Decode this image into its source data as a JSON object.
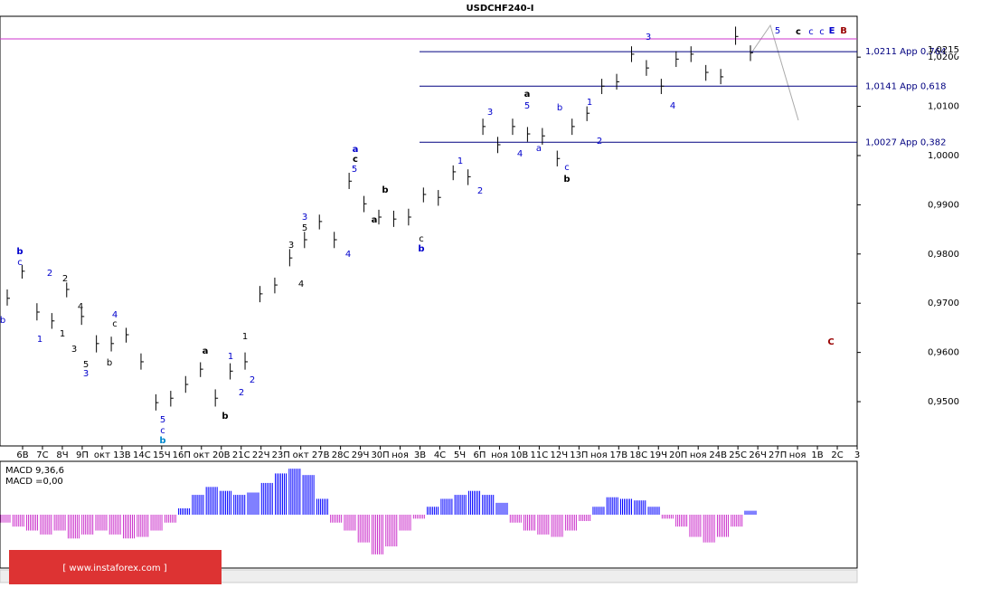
{
  "title": "USDCHF240-I",
  "watermark": "[ www.instaforex.com ]",
  "chart_data": [
    {
      "type": "ohlc",
      "name": "USDCHF240-I",
      "x_tick_labels": [
        "6В",
        "7С",
        "8Ч",
        "9П",
        "окт",
        "13В",
        "14С",
        "15Ч",
        "16П",
        "окт",
        "20В",
        "21С",
        "22Ч",
        "23П",
        "окт",
        "27В",
        "28С",
        "29Ч",
        "30П",
        "ноя",
        "3В",
        "4С",
        "5Ч",
        "6П",
        "ноя",
        "10В",
        "11С",
        "12Ч",
        "13П",
        "ноя",
        "17В",
        "18С",
        "19Ч",
        "20П",
        "ноя",
        "24В",
        "25С",
        "26Ч",
        "27П",
        "ноя",
        "1В",
        "2С",
        "3"
      ],
      "high": [
        0.9728,
        0.9778,
        0.97,
        0.968,
        0.9742,
        0.969,
        0.9635,
        0.9632,
        0.965,
        0.9598,
        0.9515,
        0.9522,
        0.9552,
        0.958,
        0.9525,
        0.9578,
        0.96,
        0.9735,
        0.9752,
        0.981,
        0.9845,
        0.988,
        0.9845,
        0.9965,
        0.9918,
        0.989,
        0.9888,
        0.9892,
        0.9935,
        0.993,
        0.998,
        0.9972,
        1.0075,
        1.0038,
        1.0075,
        1.0058,
        1.0056,
        1.001,
        1.0075,
        1.01,
        1.0156,
        1.0166,
        1.0222,
        1.0194,
        1.0156,
        1.0212,
        1.0222,
        1.0184,
        1.0176,
        1.0262,
        1.0224
      ],
      "low": [
        0.9695,
        0.975,
        0.9665,
        0.9648,
        0.9712,
        0.9656,
        0.96,
        0.9602,
        0.962,
        0.9565,
        0.9482,
        0.949,
        0.9518,
        0.955,
        0.949,
        0.9545,
        0.9565,
        0.9702,
        0.972,
        0.9775,
        0.9812,
        0.985,
        0.9812,
        0.9932,
        0.9885,
        0.986,
        0.9855,
        0.9858,
        0.9905,
        0.9898,
        0.995,
        0.994,
        1.0042,
        1.0005,
        1.0042,
        1.0028,
        1.0022,
        0.9978,
        1.0042,
        1.007,
        1.0125,
        1.0134,
        1.019,
        1.0162,
        1.0125,
        1.018,
        1.019,
        1.0152,
        1.0145,
        1.0225,
        1.0192
      ],
      "close": [
        0.971,
        0.9765,
        0.9682,
        0.9664,
        0.9728,
        0.9673,
        0.9618,
        0.9618,
        0.9636,
        0.9581,
        0.9498,
        0.9507,
        0.9535,
        0.9566,
        0.9507,
        0.9562,
        0.9581,
        0.9719,
        0.9737,
        0.9792,
        0.9829,
        0.9866,
        0.9829,
        0.9948,
        0.9902,
        0.9875,
        0.9871,
        0.9875,
        0.9921,
        0.9915,
        0.9967,
        0.9957,
        1.0059,
        1.0022,
        1.0059,
        1.0044,
        1.004,
        0.9994,
        1.0059,
        1.0086,
        1.0141,
        1.015,
        1.0206,
        1.0178,
        1.0141,
        1.0196,
        1.0206,
        1.0169,
        1.016,
        1.0242,
        1.0209
      ],
      "color": "#000000",
      "ylim": [
        0.941,
        1.0283
      ],
      "yticks": [
        {
          "value": 0.95,
          "label": "0,9500"
        },
        {
          "value": 0.96,
          "label": "0,9600"
        },
        {
          "value": 0.97,
          "label": "0,9700"
        },
        {
          "value": 0.98,
          "label": "0,9800"
        },
        {
          "value": 0.99,
          "label": "0,9900"
        },
        {
          "value": 1.0,
          "label": "1,0000"
        },
        {
          "value": 1.01,
          "label": "1,0100"
        },
        {
          "value": 1.02,
          "label": "1,0200"
        }
      ],
      "levels": [
        {
          "value": 1.0211,
          "label": "1,0211 App 0,764"
        },
        {
          "value": 1.0141,
          "label": "1,0141 App 0,618"
        },
        {
          "value": 1.0027,
          "label": "1,0027 App 0,382"
        }
      ],
      "level_color": "#000080",
      "alert_line": 1.0237,
      "alert_color": "#cc33cc",
      "current_price": {
        "value": 1.0215,
        "label": "1,0215"
      },
      "annotations": [
        "b",
        "c",
        "b",
        "1",
        "2",
        "2",
        "1",
        "4",
        "3",
        "5",
        "3",
        "b",
        "4",
        "c",
        "5",
        "c",
        "b",
        "a",
        "b",
        "1",
        "1",
        "2",
        "2",
        "3",
        "3",
        "5",
        "4",
        "4",
        "a",
        "c",
        "5",
        "b",
        "a",
        "c",
        "b",
        "1",
        "2",
        "3",
        "4",
        "a",
        "5",
        "a",
        "b",
        "c",
        "b",
        "1",
        "2",
        "3",
        "4",
        "5",
        "c",
        "c",
        "c",
        "E",
        "B",
        "C"
      ]
    },
    {
      "type": "bar",
      "title_lines": [
        "MACD 9,36,6",
        "MACD =0,00"
      ],
      "values": [
        -0.001,
        -0.0015,
        -0.002,
        -0.0025,
        -0.002,
        -0.003,
        -0.0025,
        -0.002,
        -0.0025,
        -0.003,
        -0.0028,
        -0.002,
        -0.001,
        0.0008,
        0.0025,
        0.0035,
        0.003,
        0.0025,
        0.0028,
        0.004,
        0.0052,
        0.0058,
        0.005,
        0.002,
        -0.001,
        -0.002,
        -0.0035,
        -0.005,
        -0.004,
        -0.002,
        -0.0005,
        0.001,
        0.002,
        0.0025,
        0.003,
        0.0025,
        0.0015,
        -0.001,
        -0.002,
        -0.0025,
        -0.0028,
        -0.002,
        -0.0008,
        0.001,
        0.0022,
        0.002,
        0.0018,
        0.001,
        -0.0005,
        -0.0015,
        -0.0028,
        -0.0035,
        -0.0028,
        -0.0015,
        0.0005
      ],
      "positive_color": "#0000ff",
      "negative_color": "#cc33cc",
      "ylim": [
        -0.0065,
        0.0065
      ]
    }
  ]
}
